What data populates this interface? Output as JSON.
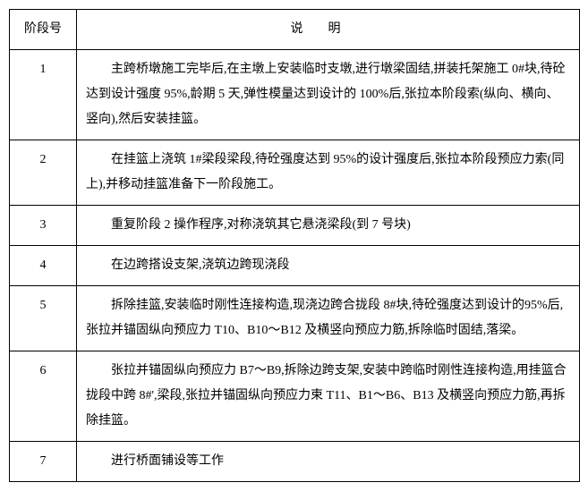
{
  "table": {
    "headers": {
      "stage": "阶段号",
      "description": "说明"
    },
    "rows": [
      {
        "num": "1",
        "desc": "主跨桥墩施工完毕后,在主墩上安装临时支墩,进行墩梁固结,拼装托架施工 0#块,待砼达到设计强度 95%,龄期 5 天,弹性模量达到设计的 100%后,张拉本阶段索(纵向、横向、竖向),然后安装挂篮。"
      },
      {
        "num": "2",
        "desc": "在挂篮上浇筑 1#梁段梁段,待砼强度达到 95%的设计强度后,张拉本阶段预应力索(同上),并移动挂篮准备下一阶段施工。"
      },
      {
        "num": "3",
        "desc": "重复阶段 2 操作程序,对称浇筑其它悬浇梁段(到 7 号块)"
      },
      {
        "num": "4",
        "desc": "在边跨搭设支架,浇筑边跨现浇段"
      },
      {
        "num": "5",
        "desc": "拆除挂篮,安装临时刚性连接构造,现浇边跨合拢段 8#块,待砼强度达到设计的95%后,张拉并锚固纵向预应力 T10、B10～B12 及横竖向预应力筋,拆除临时固结,落梁。"
      },
      {
        "num": "6",
        "desc": "张拉并锚固纵向预应力 B7～B9,拆除边跨支架,安装中跨临时刚性连接构造,用挂篮合拢段中跨 8#',梁段,张拉并锚固纵向预应力束 T11、B1～B6、B13 及横竖向预应力筋,再拆除挂篮。"
      },
      {
        "num": "7",
        "desc": "进行桥面铺设等工作"
      }
    ]
  }
}
